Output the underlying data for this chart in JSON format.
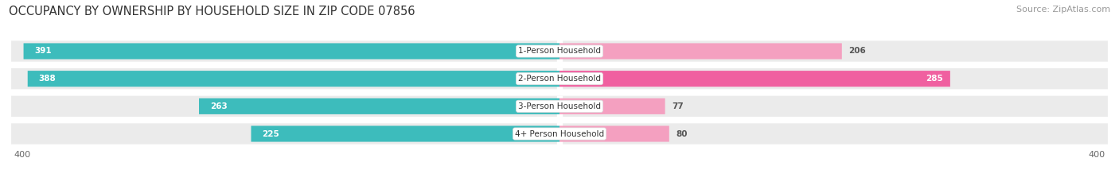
{
  "title": "OCCUPANCY BY OWNERSHIP BY HOUSEHOLD SIZE IN ZIP CODE 07856",
  "source": "Source: ZipAtlas.com",
  "categories": [
    "1-Person Household",
    "2-Person Household",
    "3-Person Household",
    "4+ Person Household"
  ],
  "owner_values": [
    391,
    388,
    263,
    225
  ],
  "renter_values": [
    206,
    285,
    77,
    80
  ],
  "owner_color": "#3DBCBC",
  "renter_color_dark": "#F060A0",
  "renter_color_light": "#F4A0C0",
  "axis_max": 400,
  "title_fontsize": 10.5,
  "source_fontsize": 8,
  "label_fontsize": 7.5,
  "tick_fontsize": 8,
  "bar_height": 0.58,
  "row_bg_color": "#EBEBEB",
  "background_color": "#FFFFFF",
  "white_text": "#FFFFFF",
  "dark_text": "#555555"
}
